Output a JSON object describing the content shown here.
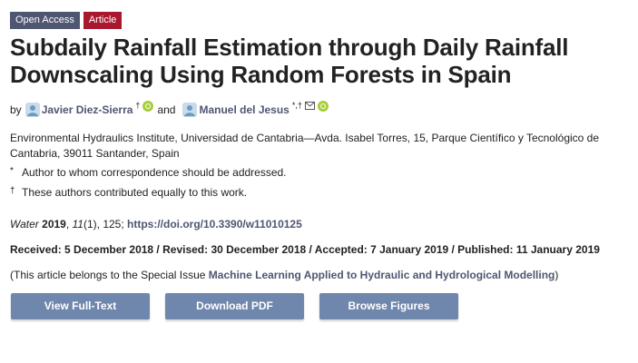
{
  "badges": {
    "open_access": "Open Access",
    "article": "Article"
  },
  "title": "Subdaily Rainfall Estimation through Daily Rainfall Downscaling Using Random Forests in Spain",
  "byline": {
    "by": "by",
    "author1": {
      "name": "Javier Diez-Sierra",
      "sup": "†"
    },
    "and": "and",
    "author2": {
      "name": "Manuel del Jesus",
      "sup": "*,†"
    }
  },
  "affiliation": "Environmental Hydraulics Institute, Universidad de Cantabria—Avda. Isabel Torres, 15, Parque Científico y Tecnológico de Cantabria, 39011 Santander, Spain",
  "notes": [
    {
      "mark": "*",
      "text": "Author to whom correspondence should be addressed."
    },
    {
      "mark": "†",
      "text": "These authors contributed equally to this work."
    }
  ],
  "citation": {
    "journal": "Water",
    "year": "2019",
    "volume": "11",
    "issue_pages": "(1), 125; ",
    "doi": "https://doi.org/10.3390/w11010125"
  },
  "dates": "Received: 5 December 2018 / Revised: 30 December 2018 / Accepted: 7 January 2019 / Published: 11 January 2019",
  "special_issue": {
    "prefix": "(This article belongs to the Special Issue ",
    "link": "Machine Learning Applied to Hydraulic and Hydrological Modelling",
    "suffix": ")"
  },
  "buttons": {
    "full_text": "View Full-Text",
    "pdf": "Download PDF",
    "figures": "Browse Figures"
  },
  "colors": {
    "accent": "#4f5671",
    "article_badge": "#a8182e",
    "button": "#6f87ac",
    "orcid": "#a6ce39"
  }
}
